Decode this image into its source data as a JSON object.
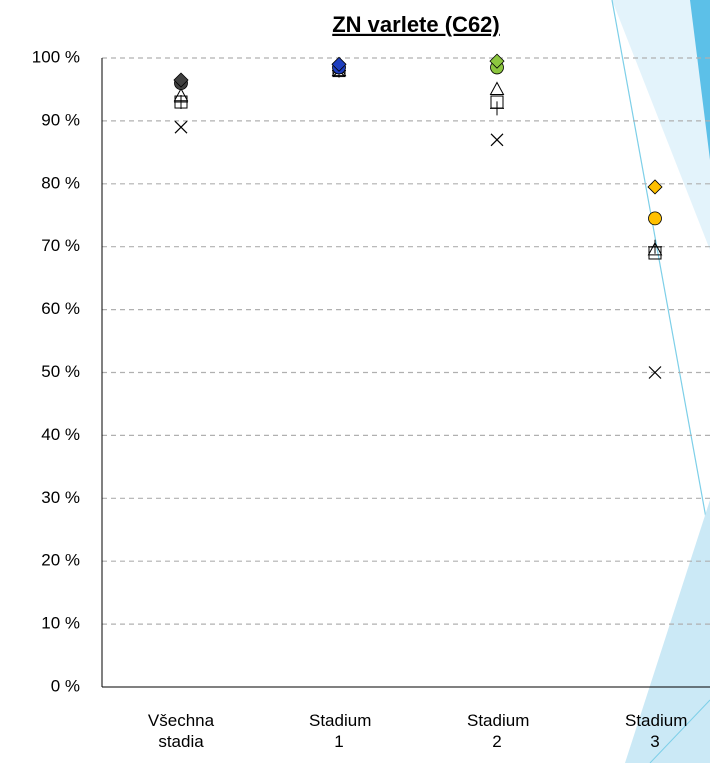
{
  "chart_data": {
    "type": "scatter",
    "title": "ZN varlete (C62)",
    "categories": [
      "Všechna stadia",
      "Stadium 1",
      "Stadium 2",
      "Stadium 3"
    ],
    "ylim": [
      0,
      100
    ],
    "yticks": [
      {
        "value": 0,
        "label": "0 %"
      },
      {
        "value": 10,
        "label": "10 %"
      },
      {
        "value": 20,
        "label": "20 %"
      },
      {
        "value": 30,
        "label": "30 %"
      },
      {
        "value": 40,
        "label": "40 %"
      },
      {
        "value": 50,
        "label": "50 %"
      },
      {
        "value": 60,
        "label": "60 %"
      },
      {
        "value": 70,
        "label": "70 %"
      },
      {
        "value": 80,
        "label": "80 %"
      },
      {
        "value": 90,
        "label": "90 %"
      },
      {
        "value": 100,
        "label": "100 %"
      }
    ],
    "grid": true,
    "series": [
      {
        "marker": "diamond",
        "colors": [
          "#404040",
          "#1f3fbf",
          "#8cc63f",
          "#ffc000"
        ],
        "values": [
          96.5,
          99,
          99.5,
          79.5
        ]
      },
      {
        "marker": "circle",
        "colors": [
          "#404040",
          "#1f3fbf",
          "#8cc63f",
          "#ffc000"
        ],
        "values": [
          96,
          98.5,
          98.5,
          74.5
        ]
      },
      {
        "marker": "triangle",
        "color": "#000000",
        "values": [
          94,
          98,
          95,
          69.5
        ]
      },
      {
        "marker": "square",
        "color": "#000000",
        "values": [
          93,
          98,
          93,
          69
        ]
      },
      {
        "marker": "plus",
        "color": "#000000",
        "values": [
          93,
          98,
          92,
          70
        ]
      },
      {
        "marker": "cross",
        "color": "#000000",
        "values": [
          89,
          98,
          87,
          50
        ]
      }
    ]
  }
}
